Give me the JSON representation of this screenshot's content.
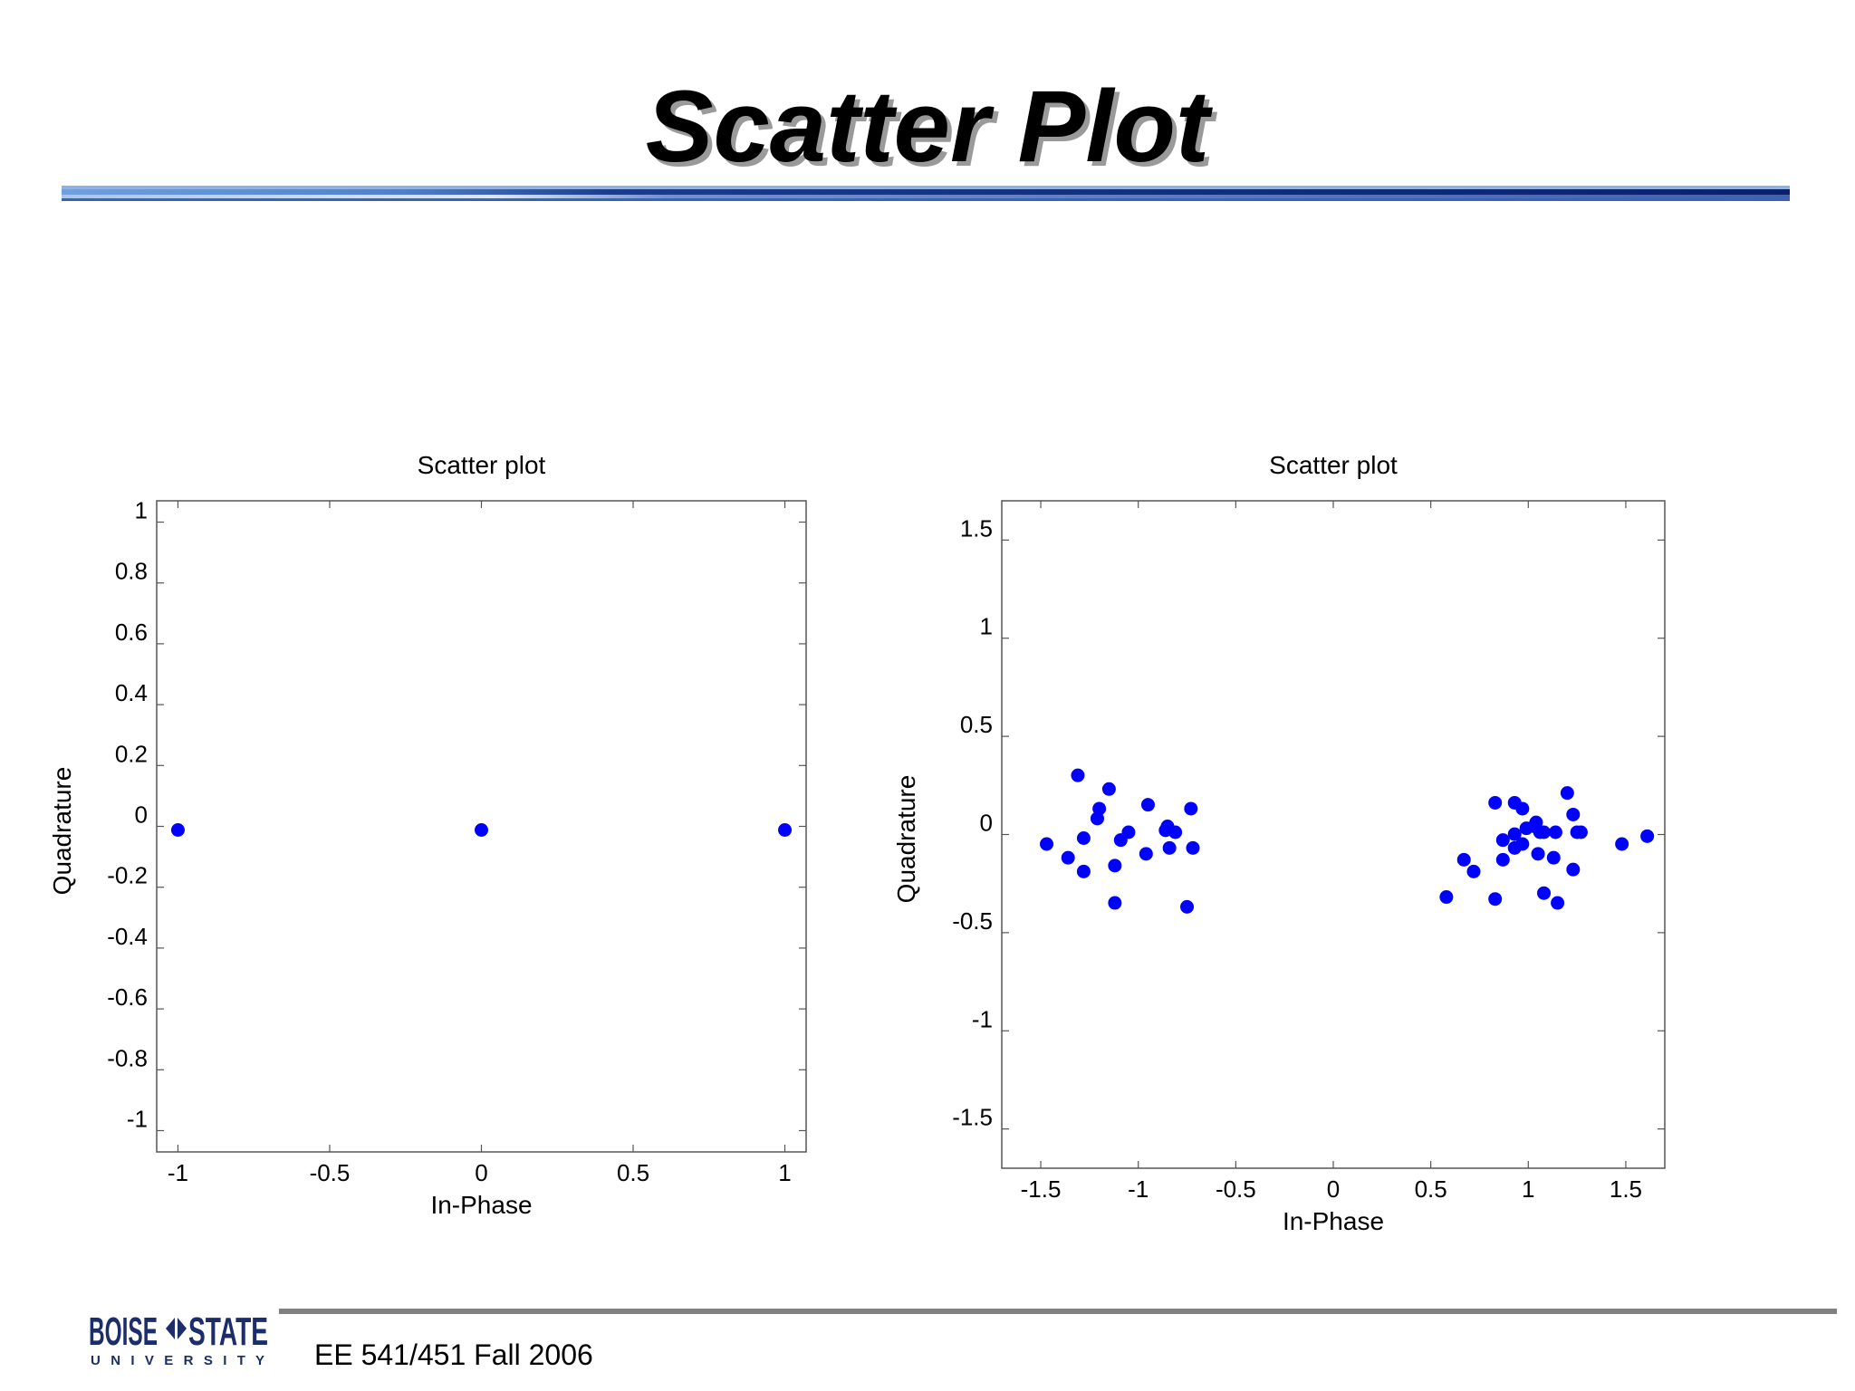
{
  "slide": {
    "title": "Scatter Plot",
    "footer": "EE 541/451 Fall 2006",
    "logo": {
      "line1_left": "BOISE",
      "line1_right": "STATE",
      "line2": "U N I V E R S I T Y"
    }
  },
  "colors": {
    "points": "#0000ff",
    "rule_dark": "#0b1f6e",
    "rule_light": "#5b8fd6",
    "footer_rule": "#808080"
  },
  "chart_data": [
    {
      "type": "scatter",
      "title": "Scatter plot",
      "xlabel": "In-Phase",
      "ylabel": "Quadrature",
      "xlim": [
        -1.07,
        1.07
      ],
      "ylim": [
        -1.07,
        1.07
      ],
      "xticks": [
        -1,
        -0.5,
        0,
        0.5,
        1
      ],
      "xtick_labels": [
        "-1",
        "-0.5",
        "0",
        "0.5",
        "1"
      ],
      "yticks": [
        1,
        0.8,
        0.6,
        0.4,
        0.2,
        0,
        -0.2,
        -0.4,
        -0.6,
        -0.8,
        -1
      ],
      "ytick_labels": [
        "1",
        "0.8",
        "0.6",
        "0.4",
        "0.2",
        "0",
        "-0.2",
        "-0.4",
        "-0.6",
        "-0.8",
        "-1"
      ],
      "grid": false,
      "points": [
        [
          -1,
          0
        ],
        [
          0,
          0
        ],
        [
          1,
          0
        ]
      ]
    },
    {
      "type": "scatter",
      "title": "Scatter plot",
      "xlabel": "In-Phase",
      "ylabel": "Quadrature",
      "xlim": [
        -1.7,
        1.7
      ],
      "ylim": [
        -1.7,
        1.7
      ],
      "xticks": [
        -1.5,
        -1,
        -0.5,
        0,
        0.5,
        1,
        1.5
      ],
      "xtick_labels": [
        "-1.5",
        "-1",
        "-0.5",
        "0",
        "0.5",
        "1",
        "1.5"
      ],
      "yticks": [
        1.5,
        1,
        0.5,
        0,
        -0.5,
        -1,
        -1.5
      ],
      "ytick_labels": [
        "1.5",
        "1",
        "0.5",
        "0",
        "-0.5",
        "-1",
        "-1.5"
      ],
      "grid": false,
      "points": [
        [
          -1.31,
          0.32
        ],
        [
          -1.15,
          0.25
        ],
        [
          -1.2,
          0.15
        ],
        [
          -1.21,
          0.1
        ],
        [
          -0.95,
          0.17
        ],
        [
          -0.73,
          0.15
        ],
        [
          -1.47,
          -0.03
        ],
        [
          -1.28,
          0.0
        ],
        [
          -1.05,
          0.03
        ],
        [
          -1.09,
          -0.01
        ],
        [
          -0.85,
          0.06
        ],
        [
          -0.86,
          0.04
        ],
        [
          -0.81,
          0.03
        ],
        [
          -0.96,
          -0.08
        ],
        [
          -0.84,
          -0.05
        ],
        [
          -0.72,
          -0.05
        ],
        [
          -1.36,
          -0.1
        ],
        [
          -1.28,
          -0.17
        ],
        [
          -1.12,
          -0.14
        ],
        [
          -1.12,
          -0.33
        ],
        [
          -0.75,
          -0.35
        ],
        [
          0.83,
          0.18
        ],
        [
          0.93,
          0.18
        ],
        [
          0.97,
          0.15
        ],
        [
          1.2,
          0.23
        ],
        [
          1.23,
          0.12
        ],
        [
          1.04,
          0.08
        ],
        [
          0.99,
          0.05
        ],
        [
          1.03,
          0.06
        ],
        [
          1.06,
          0.03
        ],
        [
          0.93,
          0.02
        ],
        [
          1.08,
          0.03
        ],
        [
          1.14,
          0.03
        ],
        [
          1.25,
          0.03
        ],
        [
          1.27,
          0.03
        ],
        [
          0.87,
          -0.01
        ],
        [
          0.97,
          -0.03
        ],
        [
          0.93,
          -0.05
        ],
        [
          1.05,
          -0.08
        ],
        [
          1.13,
          -0.1
        ],
        [
          0.67,
          -0.11
        ],
        [
          0.87,
          -0.11
        ],
        [
          1.23,
          -0.16
        ],
        [
          0.72,
          -0.17
        ],
        [
          0.58,
          -0.3
        ],
        [
          0.83,
          -0.31
        ],
        [
          1.08,
          -0.28
        ],
        [
          1.15,
          -0.33
        ],
        [
          1.48,
          -0.03
        ],
        [
          1.61,
          0.01
        ]
      ]
    }
  ]
}
